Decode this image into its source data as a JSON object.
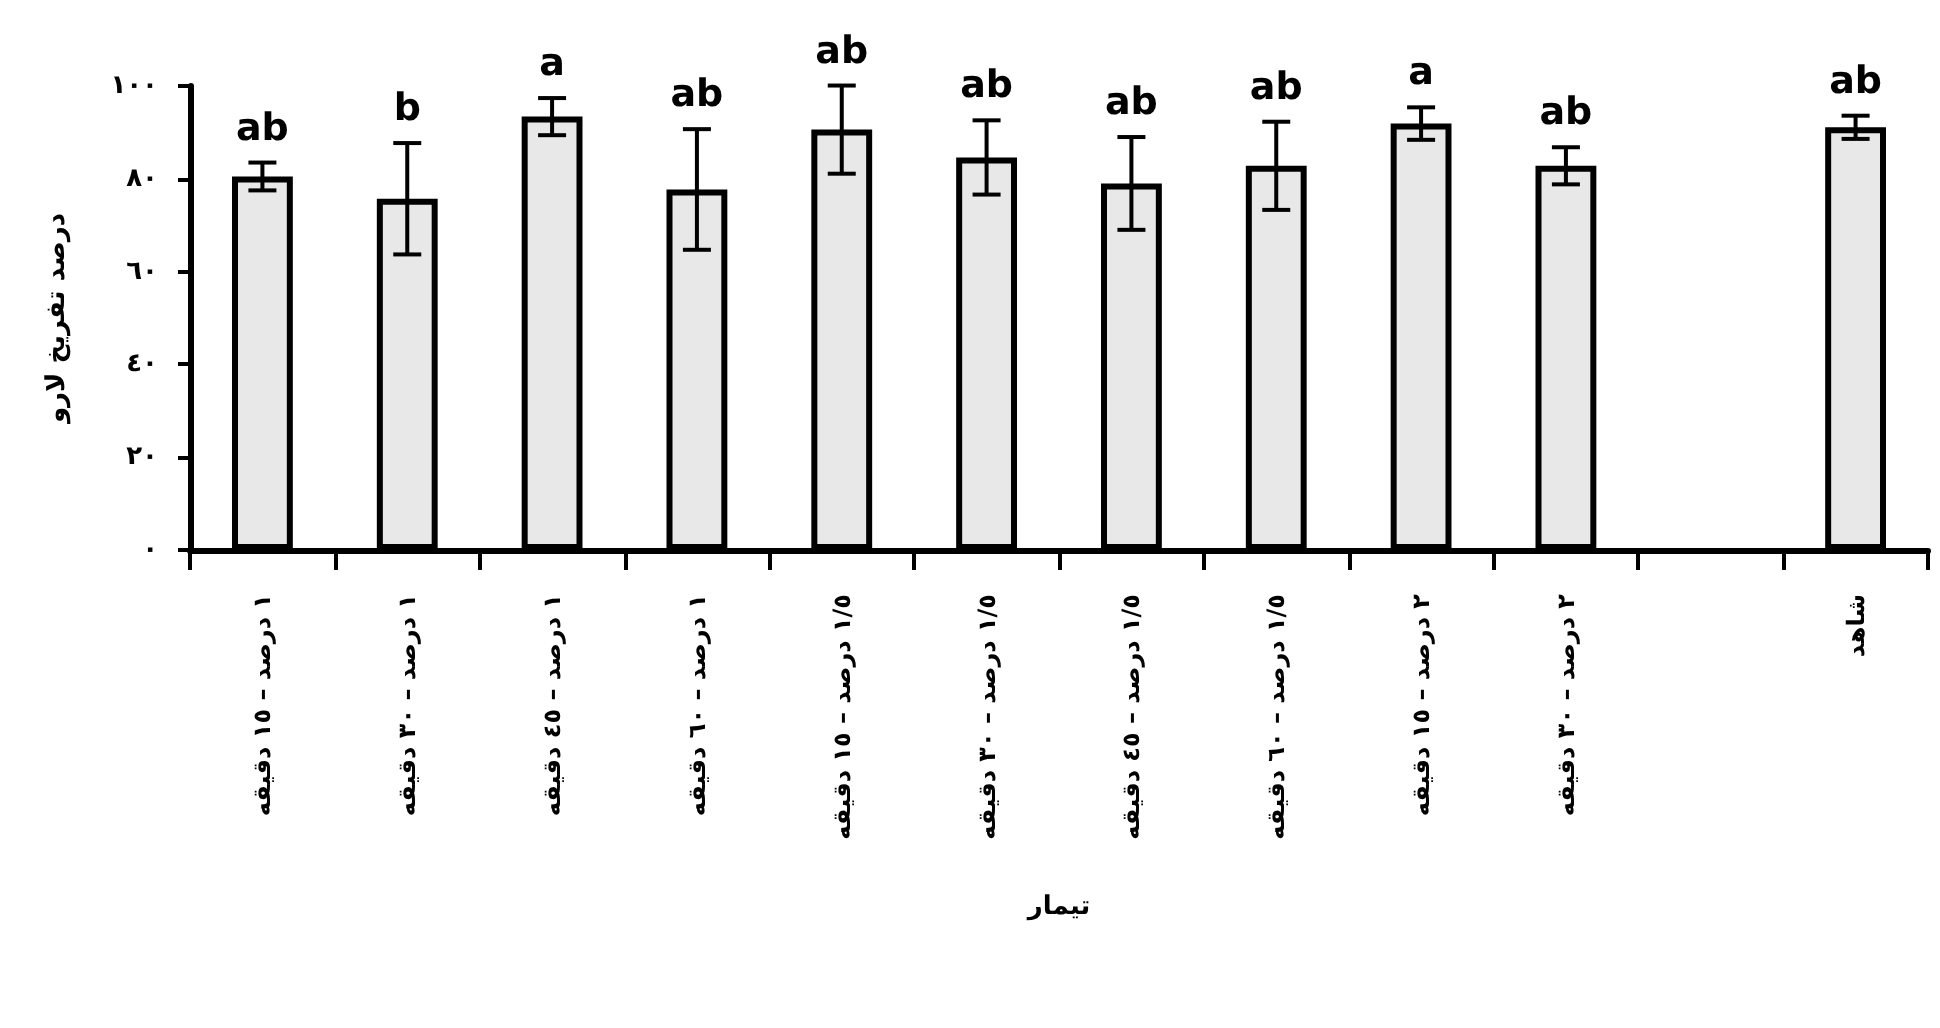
{
  "chart_data": {
    "type": "bar",
    "xlabel": "تیمار",
    "ylabel": "درصد تفریخ لارو",
    "categories": [
      "١ درصد – ١٥ دقیقه",
      "١ درصد – ٣٠ دقیقه",
      "١ درصد – ٤٥ دقیقه",
      "١ درصد – ٦٠ دقیقه",
      "١/٥ درصد – ١٥ دقیقه",
      "١/٥ درصد – ٣٠ دقیقه",
      "١/٥ درصد – ٤٥ دقیقه",
      "١/٥ درصد – ٦٠ دقیقه",
      "٢ درصد – ١٥ دقیقه",
      "٢ درصد – ٣٠ دقیقه",
      null,
      "شاهد"
    ],
    "values": [
      80.5,
      75.7,
      93.4,
      77.7,
      90.6,
      84.6,
      79,
      82.8,
      91.9,
      82.8,
      null,
      91.1
    ],
    "errors": [
      3,
      12,
      4,
      13,
      9.5,
      8,
      10,
      9.5,
      3.5,
      4,
      null,
      2.5
    ],
    "value_labels": [
      "ab",
      "b",
      "a",
      "ab",
      "ab",
      "ab",
      "ab",
      "ab",
      "a",
      "ab",
      null,
      "ab"
    ],
    "color": "#e8e8e8",
    "ylim": [
      0,
      100
    ],
    "yticks": [
      {
        "value": 0,
        "label": "٠"
      },
      {
        "value": 20,
        "label": "٢٠"
      },
      {
        "value": 40,
        "label": "٤٠"
      },
      {
        "value": 60,
        "label": "٦٠"
      },
      {
        "value": 80,
        "label": "٨٠"
      },
      {
        "value": 100,
        "label": "١٠٠"
      }
    ]
  }
}
